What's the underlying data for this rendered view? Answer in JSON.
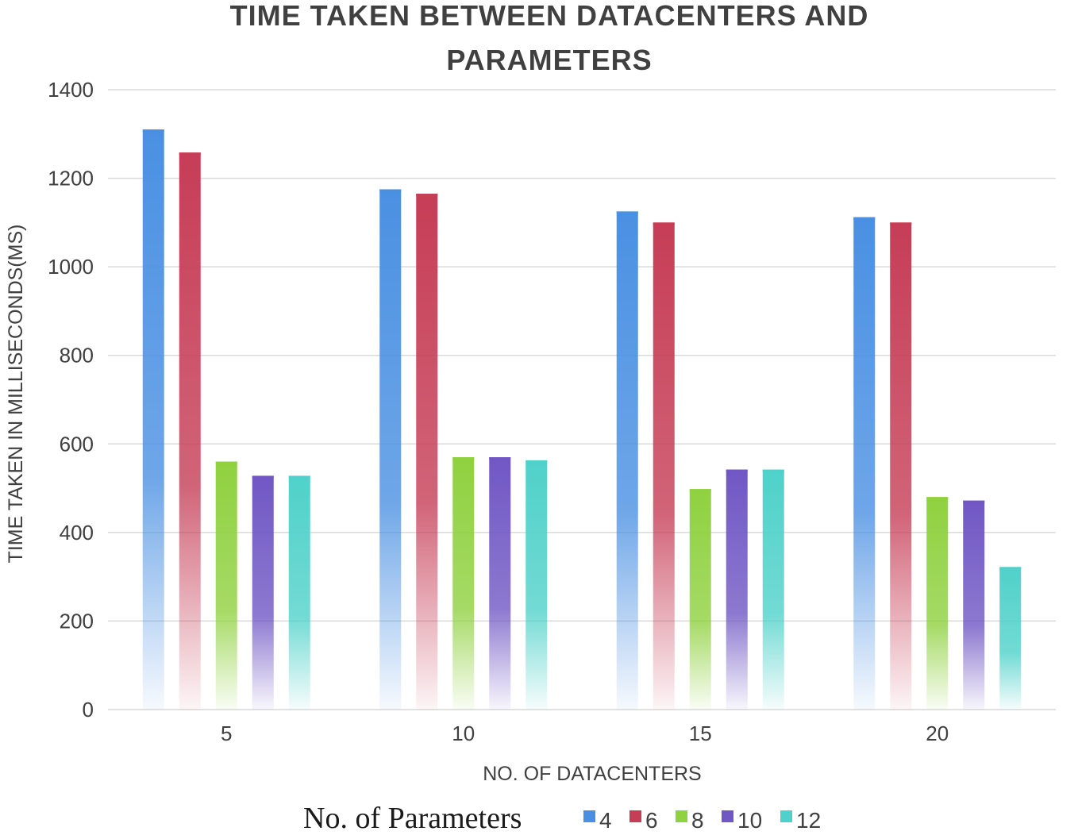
{
  "chart_data": {
    "type": "bar",
    "title_lines": [
      "TIME TAKEN BETWEEN DATACENTERS AND",
      "PARAMETERS"
    ],
    "xlabel": "NO. OF  DATACENTERS",
    "ylabel": "TIME TAKEN IN MILLISECONDS(MS)",
    "ylim": [
      0,
      1400
    ],
    "yticks": [
      0,
      200,
      400,
      600,
      800,
      1000,
      1200,
      1400
    ],
    "grid": true,
    "categories": [
      "5",
      "10",
      "15",
      "20"
    ],
    "legend": {
      "title": "No. of Parameters",
      "position": "bottom"
    },
    "series": [
      {
        "name": "4",
        "color": "#4a90e2",
        "values": [
          1310,
          1175,
          1125,
          1112
        ]
      },
      {
        "name": "6",
        "color": "#c63d56",
        "values": [
          1258,
          1165,
          1100,
          1100
        ]
      },
      {
        "name": "8",
        "color": "#8fd13f",
        "values": [
          560,
          570,
          498,
          480
        ]
      },
      {
        "name": "10",
        "color": "#7057c4",
        "values": [
          528,
          570,
          542,
          472
        ]
      },
      {
        "name": "12",
        "color": "#4fd1c9",
        "values": [
          528,
          563,
          542,
          322
        ]
      }
    ]
  }
}
